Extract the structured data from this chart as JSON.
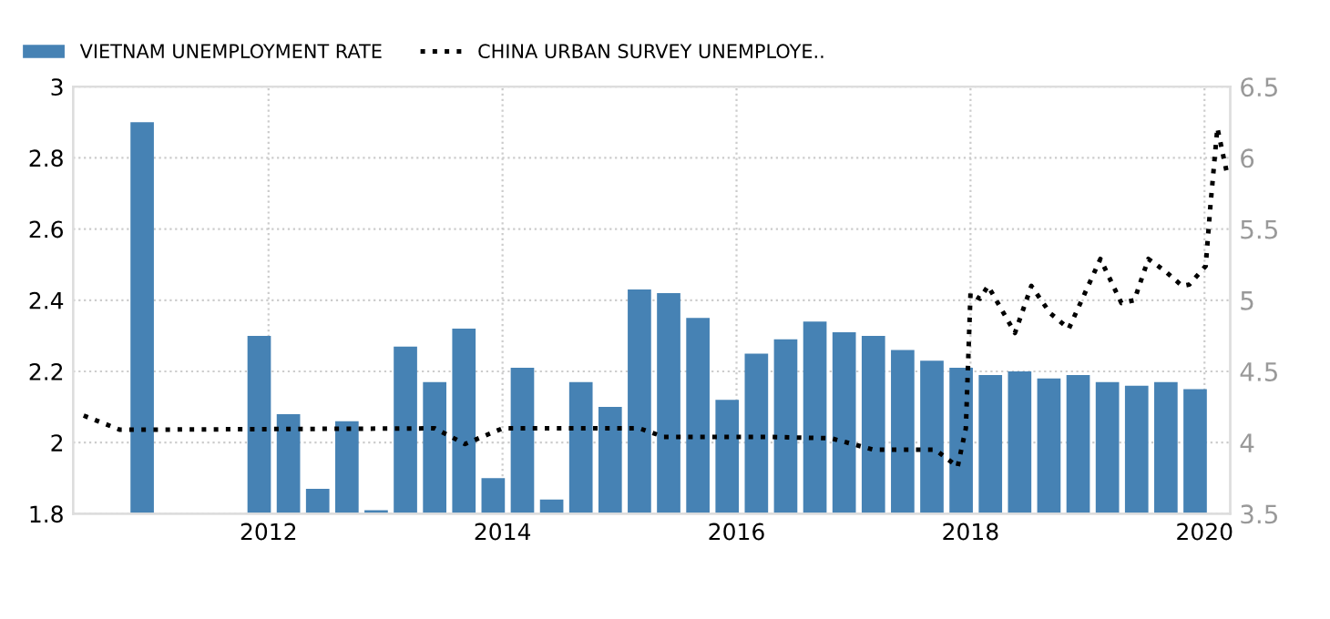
{
  "chart_data": {
    "type": "bar",
    "xlim": [
      2010.33,
      2020.22
    ],
    "xticks": [
      2012,
      2014,
      2016,
      2018,
      2020
    ],
    "ylim": [
      1.8,
      3
    ],
    "yticks": [
      1.8,
      2,
      2.2,
      2.4,
      2.6,
      2.8,
      3
    ],
    "y2lim": [
      3.5,
      6.5
    ],
    "y2ticks": [
      3.5,
      4,
      4.5,
      5,
      5.5,
      6,
      6.5
    ],
    "grid": true,
    "legend": "top left",
    "series": [
      {
        "name": "VIETNAM UNEMPLOYMENT RATE",
        "color": "#4682b4",
        "x": [
          2010.92,
          2011.92,
          2012.17,
          2012.42,
          2012.67,
          2012.92,
          2013.17,
          2013.42,
          2013.67,
          2013.92,
          2014.17,
          2014.42,
          2014.67,
          2014.92,
          2015.17,
          2015.42,
          2015.67,
          2015.92,
          2016.17,
          2016.42,
          2016.67,
          2016.92,
          2017.17,
          2017.42,
          2017.67,
          2017.92,
          2018.17,
          2018.42,
          2018.67,
          2018.92,
          2019.17,
          2019.42,
          2019.67,
          2019.92
        ],
        "values": [
          2.9,
          2.3,
          2.08,
          1.87,
          2.06,
          1.81,
          2.27,
          2.17,
          2.32,
          1.9,
          2.21,
          1.84,
          2.17,
          2.1,
          2.43,
          2.42,
          2.35,
          2.12,
          2.25,
          2.29,
          2.34,
          2.31,
          2.3,
          2.26,
          2.23,
          2.21,
          2.19,
          2.2,
          2.18,
          2.19,
          2.17,
          2.16,
          2.17,
          2.15
        ]
      },
      {
        "name": "CHINA URBAN SURVEY UNEMPLOYE..",
        "type": "line",
        "axis": "y2",
        "color": "#000000",
        "line_style": "dotted",
        "x": [
          2010.42,
          2010.73,
          2013.42,
          2013.68,
          2014.0,
          2015.17,
          2015.38,
          2016.28,
          2016.81,
          2017.17,
          2017.7,
          2017.89,
          2017.96,
          2018.0,
          2018.08,
          2018.15,
          2018.38,
          2018.52,
          2018.68,
          2018.84,
          2019.11,
          2019.29,
          2019.4,
          2019.52,
          2019.67,
          2019.81,
          2019.87,
          2020.01,
          2020.05,
          2020.11,
          2020.19
        ],
        "values": [
          4.19,
          4.09,
          4.1,
          3.99,
          4.1,
          4.1,
          4.04,
          4.04,
          4.03,
          3.95,
          3.95,
          3.83,
          4.1,
          5.05,
          5.01,
          5.1,
          4.77,
          5.1,
          4.91,
          4.8,
          5.29,
          4.98,
          5.0,
          5.29,
          5.2,
          5.1,
          5.11,
          5.24,
          5.66,
          6.21,
          5.9
        ]
      }
    ]
  }
}
